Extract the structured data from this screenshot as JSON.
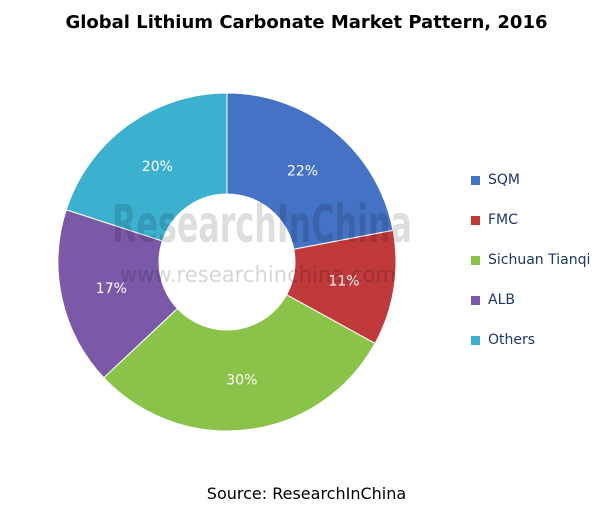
{
  "title": "Global Lithium Carbonate Market Pattern, 2016",
  "source": "Source: ResearchInChina",
  "watermark": {
    "brand": "ResearchInChina",
    "url": "www.researchinchina.com"
  },
  "chart_data": {
    "type": "pie",
    "subtype": "doughnut",
    "title": "Global Lithium Carbonate Market Pattern, 2016",
    "categories": [
      "SQM",
      "FMC",
      "Sichuan Tianqi",
      "ALB",
      "Others"
    ],
    "values": [
      22,
      11,
      30,
      17,
      20
    ],
    "labels": [
      "22%",
      "11%",
      "30%",
      "17%",
      "20%"
    ],
    "colors": [
      "#4472c4",
      "#c0393b",
      "#8bc34a",
      "#7b59a8",
      "#3cb0cf"
    ],
    "legend_position": "right",
    "unit": "%"
  }
}
